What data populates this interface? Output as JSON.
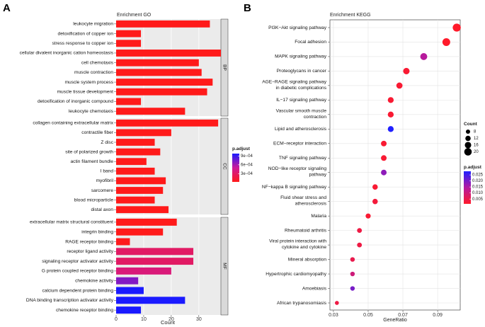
{
  "panel_a_letter": "A",
  "panel_b_letter": "B",
  "chart_data": [
    {
      "type": "bar",
      "orientation": "horizontal",
      "title": "Enrichment GO",
      "xlabel": "Count",
      "xlim": [
        0,
        38
      ],
      "xticks": [
        0,
        10,
        20,
        30
      ],
      "facets": [
        {
          "name": "BP",
          "categories": [
            "leukocyte migration",
            "detoxification of copper ion",
            "stress response to copper ion",
            "cellular divalent inorganic cation homeostasis",
            "cell chemotaxis",
            "muscle contraction",
            "muscle system process",
            "muscle tissue development",
            "detoxification of inorganic compound",
            "leukocyte chemotaxis"
          ],
          "values": [
            34,
            9,
            9,
            38,
            30,
            31,
            35,
            33,
            9,
            25
          ],
          "p_adjust": [
            2e-05,
            2e-05,
            2e-05,
            2e-05,
            2e-05,
            2e-05,
            2e-05,
            2e-05,
            2e-05,
            2e-05
          ]
        },
        {
          "name": "CC",
          "categories": [
            "collagen  containing extracellular matrix",
            "contractile fiber",
            "Z disc",
            "site of polarized growth",
            "actin filament bundle",
            "I band",
            "myofibril",
            "sarcomere",
            "blood microparticle",
            "distal axon"
          ],
          "values": [
            37,
            20,
            14,
            16,
            11,
            14,
            18,
            17,
            14,
            19
          ],
          "p_adjust": [
            2e-05,
            2e-05,
            2e-05,
            2e-05,
            2e-05,
            2e-05,
            2e-05,
            2e-05,
            2e-05,
            2e-05
          ]
        },
        {
          "name": "MF",
          "categories": [
            "extracellular matrix structural constituent",
            "integrin binding",
            "RAGE receptor binding",
            "receptor ligand activity",
            "signaling receptor activator activity",
            "G protein coupled receptor binding",
            "chemokine activity",
            "calcium dependent protein binding",
            "DNA binding transcription activator activity",
            "chemokine receptor binding"
          ],
          "values": [
            22,
            17,
            5,
            28,
            28,
            20,
            8,
            10,
            25,
            9
          ],
          "p_adjust": [
            2e-05,
            2e-05,
            3e-05,
            0.0003,
            0.0003,
            0.00038,
            0.0007,
            0.00098,
            0.00098,
            0.00098
          ]
        }
      ],
      "legend": {
        "title": "p.adjust",
        "tick_labels": [
          "3e−04",
          "6e−04",
          "9e−04"
        ],
        "tick_values": [
          0.0003,
          0.0006,
          0.0009
        ],
        "range": [
          2e-05,
          0.00098
        ]
      }
    },
    {
      "type": "scatter",
      "title": "Enrichment KEGG",
      "xlabel": "GeneRatio",
      "xlim": [
        0.028,
        0.103
      ],
      "xticks": [
        0.03,
        0.05,
        0.07,
        0.09
      ],
      "xtick_labels": [
        "0.03",
        "0.05",
        "0.07",
        "0.09"
      ],
      "categories": [
        [
          "PI3K−Akt signaling pathway"
        ],
        [
          "Focal adhesion"
        ],
        [
          "MAPK signaling pathway"
        ],
        [
          "Proteoglycans in cancer"
        ],
        [
          "AGE−RAGE signaling pathway",
          "in diabetic complications"
        ],
        [
          "IL−17 signaling pathway"
        ],
        [
          "Vascular smooth muscle",
          "contraction"
        ],
        [
          "Lipid and atherosclerosis"
        ],
        [
          "ECM−receptor interaction"
        ],
        [
          "TNF signaling pathway"
        ],
        [
          "NOD−like receptor signaling",
          "pathway"
        ],
        [
          "NF−kappa B signaling pathway"
        ],
        [
          "Fluid shear stress and",
          "atherosclerosis"
        ],
        [
          "Malaria"
        ],
        [
          "Rheumatoid arthritis"
        ],
        [
          "Viral protein interaction with",
          "cytokine and cytokine"
        ],
        [
          "Mineral absorption"
        ],
        [
          "Hypertrophic cardiomyopathy"
        ],
        [
          "Amoebiasis"
        ],
        [
          "African trypanosomiasis"
        ]
      ],
      "gene_ratio": [
        0.101,
        0.095,
        0.082,
        0.072,
        0.068,
        0.063,
        0.063,
        0.063,
        0.059,
        0.059,
        0.059,
        0.054,
        0.054,
        0.05,
        0.045,
        0.045,
        0.041,
        0.041,
        0.041,
        0.032
      ],
      "count": [
        22,
        21,
        18,
        16,
        15,
        14,
        14,
        14,
        13,
        13,
        13,
        12,
        12,
        11,
        10,
        10,
        9,
        9,
        9,
        7
      ],
      "p_adjust": [
        0.001,
        0.001,
        0.014,
        0.002,
        0.002,
        0.002,
        0.002,
        0.028,
        0.002,
        0.002,
        0.018,
        0.002,
        0.003,
        0.002,
        0.004,
        0.004,
        0.005,
        0.01,
        0.02,
        0.004
      ],
      "size_legend": {
        "title": "Count",
        "values": [
          8,
          12,
          16,
          20
        ]
      },
      "color_legend": {
        "title": "p.adjust",
        "tick_labels": [
          "0.025",
          "0.020",
          "0.015",
          "0.010",
          "0.005"
        ],
        "tick_values": [
          0.025,
          0.02,
          0.015,
          0.01,
          0.005
        ],
        "range": [
          0.001,
          0.028
        ]
      }
    }
  ]
}
